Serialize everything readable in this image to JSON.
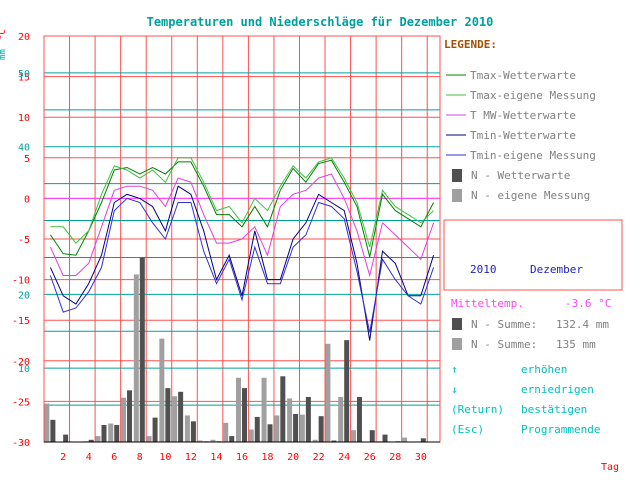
{
  "title": "Temperaturen und Niederschläge für Dezember 2010",
  "unit_mm": "mm",
  "unit_temp": "°C",
  "xlabel": "Tag",
  "colors": {
    "title": "#00a0a0",
    "temp_axis": "#ff0000",
    "mm_axis": "#00a0a0",
    "grid_red": "#ff5050",
    "grid_teal": "#00a0a0",
    "axis_black": "#000000",
    "zero_line": "#ff40ff",
    "legend_title": "#a05000",
    "legend_text": "#808080",
    "info_blue": "#2020c0",
    "info_magenta": "#ff40ff",
    "controls": "#00c0c0",
    "bar_dark": "#505050",
    "bar_light": "#a0a0a0"
  },
  "legend": {
    "title": "LEGENDE:",
    "items": [
      {
        "label": "Tmax-Wetterwarte",
        "color": "#008000",
        "kind": "line"
      },
      {
        "label": "Tmax-eigene Messung",
        "color": "#40c040",
        "kind": "line"
      },
      {
        "label": "T MW-Wetterwarte",
        "color": "#e040e0",
        "kind": "line"
      },
      {
        "label": "Tmin-Wetterwarte",
        "color": "#000080",
        "kind": "line"
      },
      {
        "label": "Tmin-eigene Messung",
        "color": "#3030d0",
        "kind": "line"
      },
      {
        "label": "N - Wetterwarte",
        "color": "#505050",
        "kind": "bar"
      },
      {
        "label": "N - eigene Messung",
        "color": "#a0a0a0",
        "kind": "bar"
      }
    ]
  },
  "info": {
    "year": "2010",
    "month": "Dezember",
    "mitteltemp_label": "Mitteltemp.",
    "mitteltemp_value": "-3.6 °C",
    "sum1_label": "N - Summe:",
    "sum1_value": "132.4 mm",
    "sum2_label": "N - Summe:",
    "sum2_value": "135   mm"
  },
  "controls": [
    {
      "key": "↑",
      "action": "erhöhen"
    },
    {
      "key": "↓",
      "action": "erniedrigen"
    },
    {
      "key": "(Return)",
      "action": "bestätigen"
    },
    {
      "key": "(Esc)",
      "action": "Programmende"
    }
  ],
  "chart_data": {
    "type": "line",
    "title": "Temperaturen und Niederschläge für Dezember 2010",
    "xlabel": "Tag",
    "ylabel_left_temp": "°C",
    "ylabel_left_precip": "mm",
    "x": [
      1,
      2,
      3,
      4,
      5,
      6,
      7,
      8,
      9,
      10,
      11,
      12,
      13,
      14,
      15,
      16,
      17,
      18,
      19,
      20,
      21,
      22,
      23,
      24,
      25,
      26,
      27,
      28,
      29,
      30,
      31
    ],
    "xticks": [
      2,
      4,
      6,
      8,
      10,
      12,
      14,
      16,
      18,
      20,
      22,
      24,
      26,
      28,
      30
    ],
    "temp_ylim": [
      -30,
      20
    ],
    "temp_ticks": [
      20,
      15,
      10,
      5,
      0,
      -5,
      -10,
      -15,
      -20,
      -25,
      -30
    ],
    "precip_ylim": [
      0,
      55
    ],
    "precip_ticks": [
      50,
      40,
      20,
      10
    ],
    "grid": true,
    "series": [
      {
        "name": "Tmax-Wetterwarte",
        "color": "#008000",
        "values": [
          -4.5,
          -6.8,
          -7.0,
          -4.0,
          -0.5,
          3.5,
          3.8,
          3.0,
          3.8,
          3.0,
          4.5,
          4.5,
          1.5,
          -2.0,
          -2.0,
          -3.5,
          -1.0,
          -3.5,
          1.0,
          3.7,
          2.0,
          4.3,
          4.7,
          2.0,
          -1.0,
          -7.2,
          0.5,
          -1.5,
          -2.5,
          -3.5,
          -0.5
        ]
      },
      {
        "name": "Tmax-eigene Messung",
        "color": "#40c040",
        "values": [
          -3.5,
          -3.5,
          -5.5,
          -4.0,
          0.5,
          4.0,
          3.5,
          2.5,
          3.5,
          2.0,
          5.0,
          5.0,
          2.0,
          -1.5,
          -1.0,
          -3.0,
          0.0,
          -1.5,
          1.5,
          4.0,
          2.5,
          4.5,
          5.0,
          2.5,
          -0.5,
          -6.0,
          1.0,
          -1.0,
          -2.0,
          -3.0,
          -1.5
        ]
      },
      {
        "name": "T MW-Wetterwarte",
        "color": "#e040e0",
        "values": [
          -6.0,
          -9.5,
          -9.5,
          -8.0,
          -3.5,
          1.0,
          1.5,
          1.5,
          1.0,
          -1.0,
          2.5,
          2.0,
          -2.0,
          -5.5,
          -5.5,
          -5.0,
          -3.5,
          -7.0,
          -1.0,
          0.5,
          1.0,
          2.5,
          3.0,
          0.0,
          -4.0,
          -9.5,
          -3.0,
          -4.5,
          -6.0,
          -7.5,
          -3.0
        ]
      },
      {
        "name": "Tmin-Wetterwarte",
        "color": "#000080",
        "values": [
          -8.5,
          -12.0,
          -13.0,
          -10.5,
          -7.0,
          -0.5,
          0.5,
          0.0,
          -1.0,
          -4.0,
          1.5,
          0.5,
          -4.0,
          -10.0,
          -7.0,
          -12.0,
          -4.0,
          -10.0,
          -10.0,
          -5.0,
          -3.0,
          0.5,
          -0.5,
          -1.5,
          -8.0,
          -17.5,
          -6.5,
          -8.0,
          -12.0,
          -12.0,
          -7.0
        ]
      },
      {
        "name": "Tmin-eigene Messung",
        "color": "#3030d0",
        "values": [
          -9.5,
          -14.0,
          -13.5,
          -11.5,
          -8.5,
          -1.5,
          0.0,
          -0.5,
          -3.0,
          -5.0,
          -0.5,
          -0.5,
          -6.5,
          -10.5,
          -7.5,
          -12.5,
          -6.0,
          -10.5,
          -10.5,
          -6.0,
          -4.5,
          -0.5,
          -1.0,
          -2.5,
          -9.0,
          -16.5,
          -7.5,
          -10.0,
          -12.0,
          -13.0,
          -8.5
        ]
      },
      {
        "name": "N - Wetterwarte",
        "kind": "bar",
        "color": "#505050",
        "values": [
          3.0,
          1.0,
          0,
          0.3,
          2.3,
          2.3,
          7.0,
          25.0,
          3.3,
          7.3,
          6.8,
          2.8,
          0.1,
          0.1,
          0.8,
          7.3,
          3.4,
          2.4,
          8.9,
          3.8,
          6.1,
          3.5,
          0.2,
          13.8,
          6.1,
          1.6,
          1.0,
          0.1,
          0,
          0.5,
          0
        ]
      },
      {
        "name": "N - eigene Messung",
        "kind": "bar",
        "color": "#a0a0a0",
        "values": [
          5.2,
          0,
          0,
          0.1,
          0.8,
          2.5,
          6.0,
          22.7,
          0.8,
          14.0,
          6.2,
          3.6,
          0.2,
          0.3,
          2.6,
          8.7,
          1.7,
          8.7,
          3.6,
          5.9,
          3.7,
          0.3,
          13.3,
          6.1,
          1.6,
          0,
          0.1,
          0,
          0.6,
          0,
          0
        ]
      }
    ]
  }
}
